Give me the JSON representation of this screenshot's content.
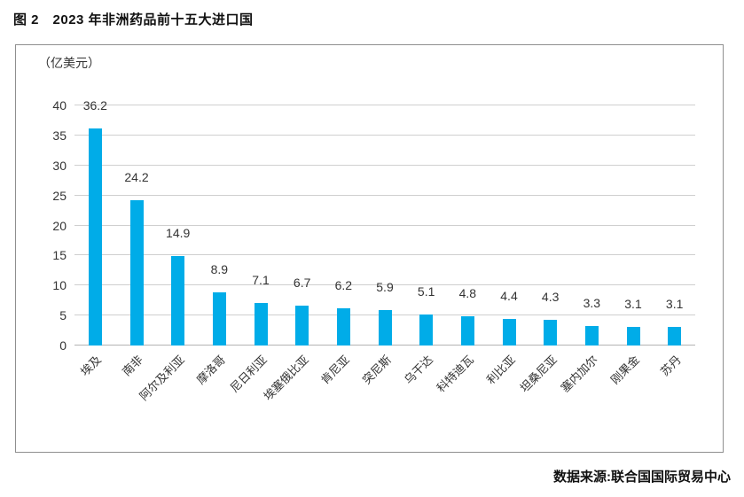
{
  "title": "图 2　2023 年非洲药品前十五大进口国",
  "source": "数据来源:联合国国际贸易中心",
  "chart_data": {
    "type": "bar",
    "title": "2023 年非洲药品前十五大进口国",
    "unit_label": "（亿美元）",
    "categories": [
      "埃及",
      "南非",
      "阿尔及利亚",
      "摩洛哥",
      "尼日利亚",
      "埃塞俄比亚",
      "肯尼亚",
      "突尼斯",
      "乌干达",
      "科特迪瓦",
      "利比亚",
      "坦桑尼亚",
      "塞内加尔",
      "刚果金",
      "苏丹"
    ],
    "values": [
      36.2,
      24.2,
      14.9,
      8.9,
      7.1,
      6.7,
      6.2,
      5.9,
      5.1,
      4.8,
      4.4,
      4.3,
      3.3,
      3.1,
      3.1
    ],
    "value_labels": [
      "36.2",
      "24.2",
      "14.9",
      "8.9",
      "7.1",
      "6.7",
      "6.2",
      "5.9",
      "5.1",
      "4.8",
      "4.4",
      "4.3",
      "3.3",
      "3.1",
      "3.1"
    ],
    "xlabel": "",
    "ylabel": "（亿美元）",
    "ylim": [
      0,
      40
    ],
    "yticks": [
      0,
      5,
      10,
      15,
      20,
      25,
      30,
      35,
      40
    ],
    "bar_color": "#00ACE8",
    "grid": true,
    "legend": false
  }
}
